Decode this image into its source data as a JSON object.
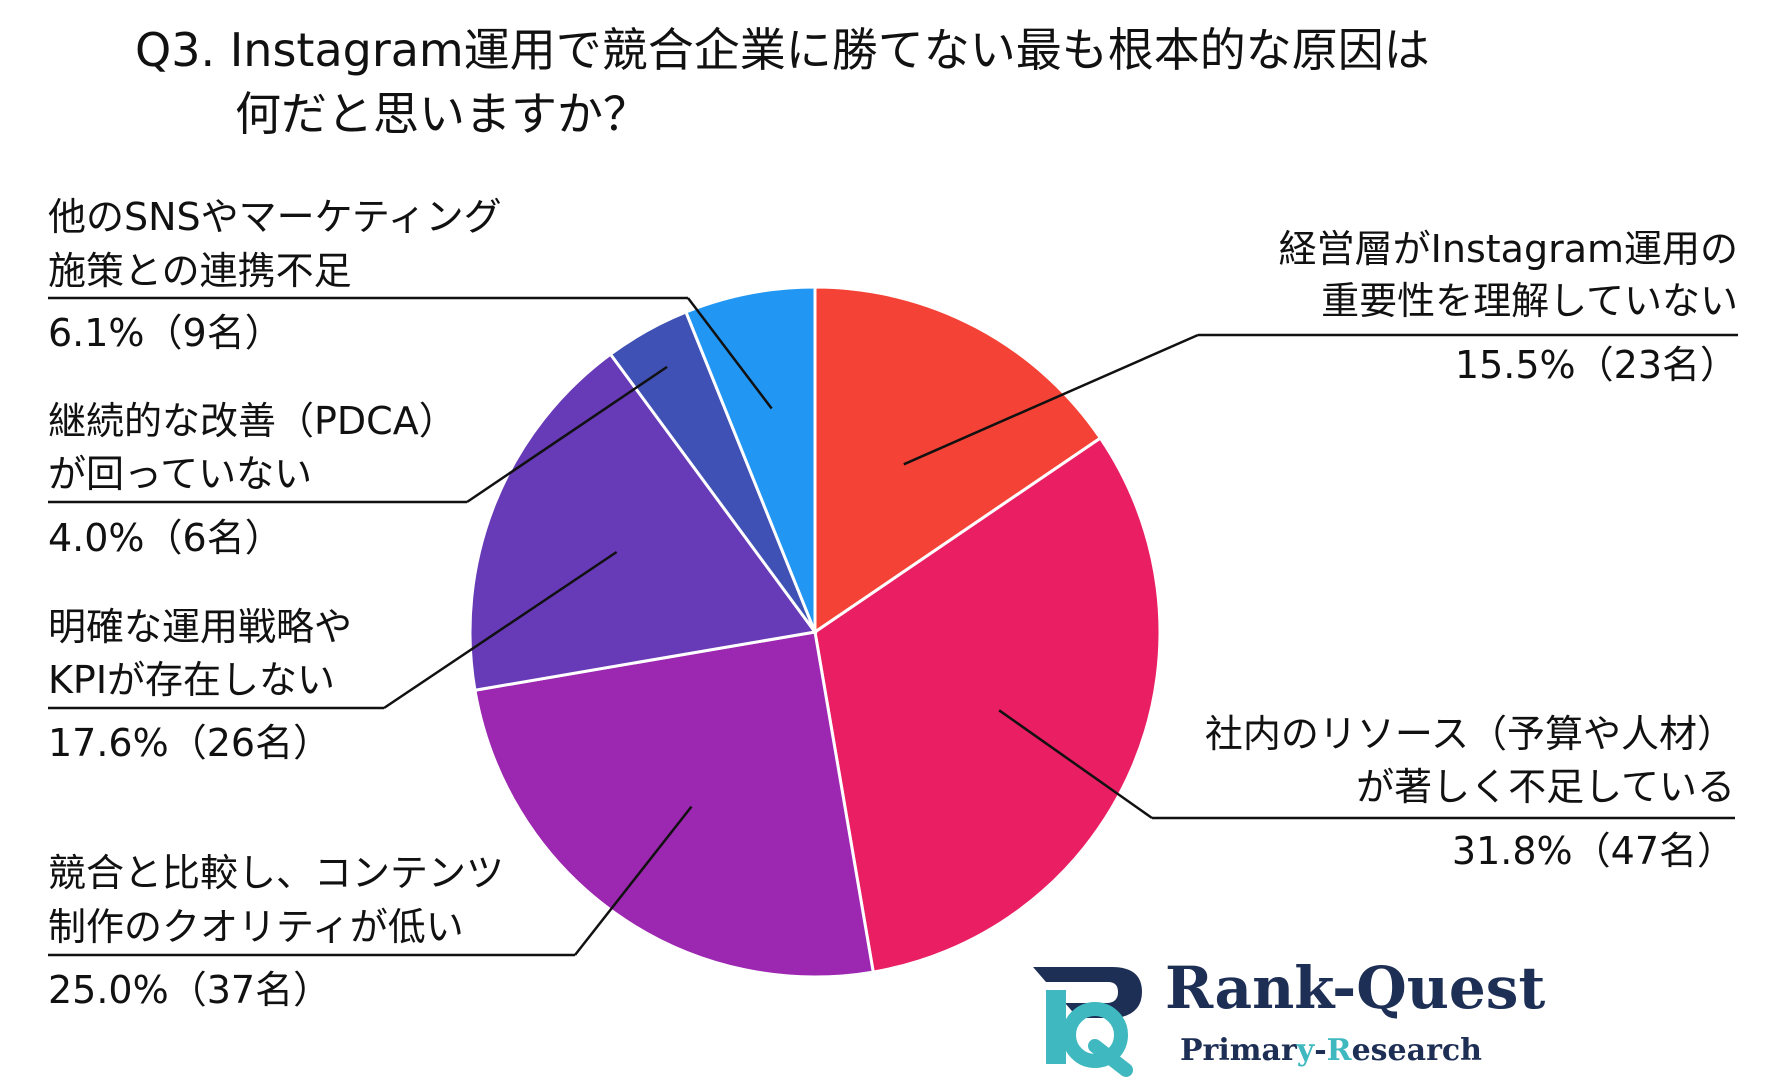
{
  "title_lines": [
    "Q3. Instagram運用で競合企業に勝てない最も根本的な原因は",
    "何だと思いますか？"
  ],
  "chart_data": {
    "type": "pie",
    "title": "Q3. Instagram運用で競合企業に勝てない最も根本的な原因は何だと思いますか？",
    "slices": [
      {
        "label_lines": [
          "経営層がInstagram運用の",
          "重要性を理解していない"
        ],
        "value": 15.5,
        "count": 23,
        "value_text": "15.5%（23名）",
        "color": "#f44336"
      },
      {
        "label_lines": [
          "社内のリソース（予算や人材）",
          "が著しく不足している"
        ],
        "value": 31.8,
        "count": 47,
        "value_text": "31.8%（47名）",
        "color": "#e91e63"
      },
      {
        "label_lines": [
          "競合と比較し、コンテンツ",
          "制作のクオリティが低い"
        ],
        "value": 25.0,
        "count": 37,
        "value_text": "25.0%（37名）",
        "color": "#9c27b0"
      },
      {
        "label_lines": [
          "明確な運用戦略や",
          "KPIが存在しない"
        ],
        "value": 17.6,
        "count": 26,
        "value_text": "17.6%（26名）",
        "color": "#673ab7"
      },
      {
        "label_lines": [
          "継続的な改善（PDCA）",
          "が回っていない"
        ],
        "value": 4.0,
        "count": 6,
        "value_text": "4.0%（6名）",
        "color": "#3f51b5"
      },
      {
        "label_lines": [
          "他のSNSやマーケティング",
          "施策との連携不足"
        ],
        "value": 6.1,
        "count": 9,
        "value_text": "6.1%（9名）",
        "color": "#2196f3"
      }
    ]
  },
  "logo": {
    "name": "Rank-Quest",
    "subtitle_parts": [
      "Primar",
      "y",
      "-",
      "R",
      "esearch"
    ],
    "colors": {
      "navy": "#1e2f55",
      "teal": "#3fb8bf"
    }
  }
}
